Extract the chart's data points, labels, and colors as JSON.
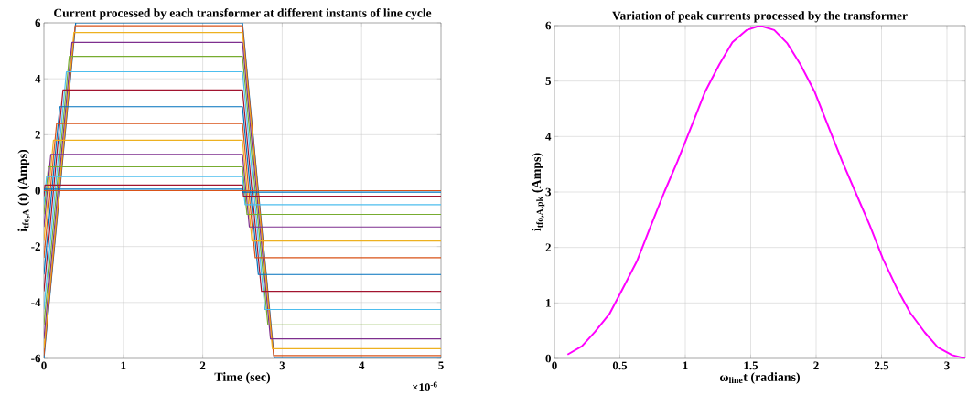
{
  "chart_data": [
    {
      "type": "line",
      "title": "Current processed by each transformer at different instants of line cycle",
      "xlabel": "Time (sec)",
      "ylabel": "i$_{tfo,A}$ (t) (Amps)",
      "annotations": [
        "×10$^{-6}$"
      ],
      "xlim": [
        0,
        5
      ],
      "ylim": [
        -6,
        6
      ],
      "xticks": [
        0,
        1,
        2,
        3,
        4,
        5
      ],
      "yticks": [
        -6,
        -4,
        -2,
        0,
        2,
        4,
        6
      ],
      "grid": true,
      "series": [
        {
          "color": "#0072bd",
          "x": [
            0,
            0.4,
            2.5,
            2.9,
            5
          ],
          "values": [
            -6,
            6,
            6,
            -6,
            -6
          ]
        },
        {
          "color": "#d95319",
          "x": [
            0,
            0.393,
            2.5,
            2.893,
            5
          ],
          "values": [
            -5.9,
            5.9,
            5.9,
            -5.9,
            -5.9
          ]
        },
        {
          "color": "#edb120",
          "x": [
            0,
            0.377,
            2.5,
            2.877,
            5
          ],
          "values": [
            -5.65,
            5.65,
            5.65,
            -5.65,
            -5.65
          ]
        },
        {
          "color": "#7e2f8e",
          "x": [
            0,
            0.353,
            2.5,
            2.853,
            5
          ],
          "values": [
            -5.3,
            5.3,
            5.3,
            -5.3,
            -5.3
          ]
        },
        {
          "color": "#77ac30",
          "x": [
            0,
            0.32,
            2.5,
            2.82,
            5
          ],
          "values": [
            -4.8,
            4.8,
            4.8,
            -4.8,
            -4.8
          ]
        },
        {
          "color": "#4dbeee",
          "x": [
            0,
            0.283,
            2.5,
            2.783,
            5
          ],
          "values": [
            -4.25,
            4.25,
            4.25,
            -4.25,
            -4.25
          ]
        },
        {
          "color": "#a2142f",
          "x": [
            0,
            0.24,
            2.5,
            2.74,
            5
          ],
          "values": [
            -3.6,
            3.6,
            3.6,
            -3.6,
            -3.6
          ]
        },
        {
          "color": "#0072bd",
          "x": [
            0,
            0.2,
            2.5,
            2.7,
            5
          ],
          "values": [
            -3,
            3,
            3,
            -3,
            -3
          ]
        },
        {
          "color": "#d95319",
          "x": [
            0,
            0.16,
            2.5,
            2.66,
            5
          ],
          "values": [
            -2.4,
            2.4,
            2.4,
            -2.4,
            -2.4
          ]
        },
        {
          "color": "#edb120",
          "x": [
            0,
            0.12,
            2.5,
            2.62,
            5
          ],
          "values": [
            -1.8,
            1.8,
            1.8,
            -1.8,
            -1.8
          ]
        },
        {
          "color": "#7e2f8e",
          "x": [
            0,
            0.087,
            2.5,
            2.587,
            5
          ],
          "values": [
            -1.3,
            1.3,
            1.3,
            -1.3,
            -1.3
          ]
        },
        {
          "color": "#77ac30",
          "x": [
            0,
            0.057,
            2.5,
            2.557,
            5
          ],
          "values": [
            -0.85,
            0.85,
            0.85,
            -0.85,
            -0.85
          ]
        },
        {
          "color": "#4dbeee",
          "x": [
            0,
            0.033,
            2.5,
            2.533,
            5
          ],
          "values": [
            -0.5,
            0.5,
            0.5,
            -0.5,
            -0.5
          ]
        },
        {
          "color": "#a2142f",
          "x": [
            0,
            0.013,
            2.5,
            2.513,
            5
          ],
          "values": [
            -0.2,
            0.2,
            0.2,
            -0.2,
            -0.2
          ]
        },
        {
          "color": "#0072bd",
          "x": [
            0,
            0.003,
            2.5,
            2.503,
            5
          ],
          "values": [
            -0.05,
            0.05,
            0.05,
            -0.05,
            -0.05
          ]
        },
        {
          "color": "#d95319",
          "x": [
            0,
            2.5,
            5
          ],
          "values": [
            0,
            0,
            0
          ]
        }
      ]
    },
    {
      "type": "line",
      "title": "Variation of peak currents processed by the transformer",
      "xlabel": "ω$_{line}$t (radians)",
      "ylabel": "i$_{tfo,A,pk}$ (Amps)",
      "xlim": [
        0,
        3.14
      ],
      "ylim": [
        0,
        6
      ],
      "xticks": [
        0,
        0.5,
        1,
        1.5,
        2,
        2.5,
        3
      ],
      "yticks": [
        0,
        1,
        2,
        3,
        4,
        5,
        6
      ],
      "grid": true,
      "series": [
        {
          "color": "#ff00ff",
          "x": [
            0.1,
            0.21,
            0.31,
            0.42,
            0.52,
            0.63,
            0.73,
            0.84,
            0.94,
            1.05,
            1.15,
            1.26,
            1.36,
            1.47,
            1.57,
            1.68,
            1.78,
            1.88,
            1.99,
            2.09,
            2.2,
            2.3,
            2.41,
            2.51,
            2.62,
            2.72,
            2.83,
            2.93,
            3.04,
            3.14
          ],
          "values": [
            0.07,
            0.22,
            0.48,
            0.8,
            1.25,
            1.75,
            2.35,
            3.0,
            3.55,
            4.2,
            4.8,
            5.3,
            5.7,
            5.92,
            6.0,
            5.92,
            5.68,
            5.3,
            4.8,
            4.2,
            3.55,
            3.0,
            2.4,
            1.8,
            1.25,
            0.82,
            0.47,
            0.2,
            0.06,
            0.0
          ]
        }
      ]
    }
  ]
}
